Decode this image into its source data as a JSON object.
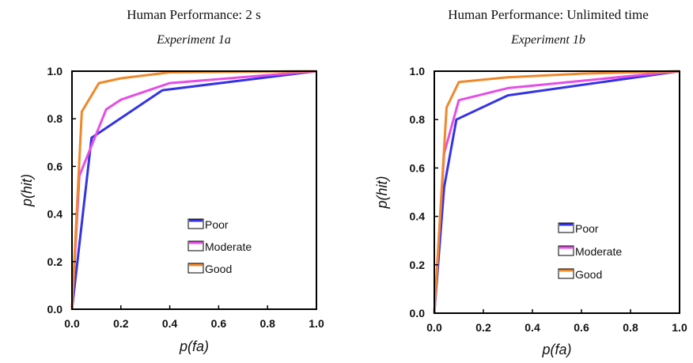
{
  "chart_data": [
    {
      "type": "line",
      "title": "Human Performance: 2 s",
      "subtitle": "Experiment 1a",
      "xlabel": "p(fa)",
      "ylabel": "p(hit)",
      "xlim": [
        0,
        1
      ],
      "ylim": [
        0,
        1
      ],
      "xticks": [
        "0.0",
        "0.2",
        "0.4",
        "0.6",
        "0.8",
        "1.0"
      ],
      "yticks": [
        "0.0",
        "0.2",
        "0.4",
        "0.6",
        "0.8",
        "1.0"
      ],
      "legend_position": "lower-right",
      "series": [
        {
          "name": "Poor",
          "color": "#3333e6",
          "x": [
            0,
            0.08,
            0.37,
            1.0
          ],
          "y": [
            0,
            0.72,
            0.92,
            1.0
          ]
        },
        {
          "name": "Moderate",
          "color": "#e64de6",
          "x": [
            0,
            0.03,
            0.14,
            0.2,
            0.4,
            1.0
          ],
          "y": [
            0,
            0.56,
            0.84,
            0.88,
            0.95,
            1.0
          ]
        },
        {
          "name": "Good",
          "color": "#f0882a",
          "x": [
            0,
            0.02,
            0.04,
            0.11,
            0.2,
            0.4,
            1.0
          ],
          "y": [
            0,
            0.42,
            0.83,
            0.95,
            0.97,
            0.995,
            1.0
          ]
        }
      ]
    },
    {
      "type": "line",
      "title": "Human Performance: Unlimited time",
      "subtitle": "Experiment 1b",
      "xlabel": "p(fa)",
      "ylabel": "p(hit)",
      "xlim": [
        0,
        1
      ],
      "ylim": [
        0,
        1
      ],
      "xticks": [
        "0.0",
        "0.2",
        "0.4",
        "0.6",
        "0.8",
        "1.0"
      ],
      "yticks": [
        "0.0",
        "0.2",
        "0.4",
        "0.6",
        "0.8",
        "1.0"
      ],
      "legend_position": "lower-right",
      "series": [
        {
          "name": "Poor",
          "color": "#3333e6",
          "x": [
            0,
            0.04,
            0.09,
            0.3,
            1.0
          ],
          "y": [
            0,
            0.52,
            0.8,
            0.9,
            1.0
          ]
        },
        {
          "name": "Moderate",
          "color": "#e64de6",
          "x": [
            0,
            0.04,
            0.1,
            0.3,
            1.0
          ],
          "y": [
            0,
            0.66,
            0.88,
            0.93,
            1.0
          ]
        },
        {
          "name": "Good",
          "color": "#f0882a",
          "x": [
            0,
            0.05,
            0.1,
            0.3,
            0.6,
            1.0
          ],
          "y": [
            0,
            0.85,
            0.955,
            0.975,
            0.99,
            1.0
          ]
        }
      ]
    }
  ]
}
